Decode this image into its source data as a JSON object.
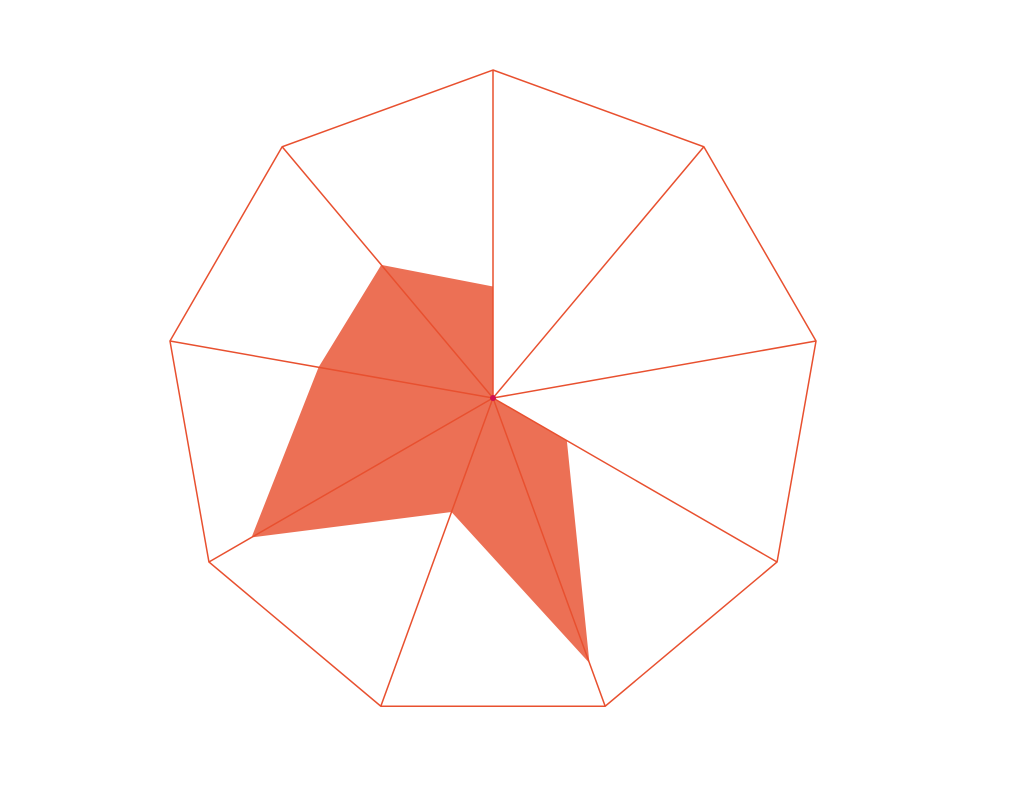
{
  "chart_data": {
    "type": "radar",
    "values": [
      0.34,
      0,
      0,
      0.26,
      0.86,
      0.37,
      0.85,
      0.54,
      0.53
    ],
    "color": "#e8502f",
    "grid_color": "#e8502f",
    "ylim": [
      0,
      1
    ]
  }
}
